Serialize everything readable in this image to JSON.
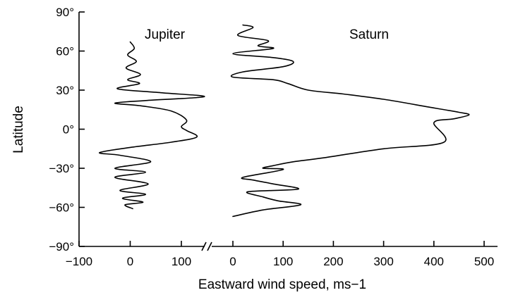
{
  "chart_data": {
    "type": "line",
    "xlabel": "Eastward wind speed, ms−1",
    "ylabel": "Latitude",
    "y_ticks": [
      "90°",
      "60°",
      "30°",
      "0°",
      "−30°",
      "−60°",
      "−90°"
    ],
    "ylim": [
      -90,
      90
    ],
    "panels": [
      {
        "name": "Jupiter",
        "x_ticks": [
          "−100",
          "0",
          "100"
        ],
        "xlim": [
          -100,
          145
        ],
        "series": [
          {
            "name": "Jupiter",
            "points": [
              [
                0,
                67
              ],
              [
                8,
                62
              ],
              [
                -5,
                57
              ],
              [
                12,
                52
              ],
              [
                -8,
                47
              ],
              [
                20,
                42
              ],
              [
                -5,
                38
              ],
              [
                18,
                35
              ],
              [
                -25,
                31
              ],
              [
                60,
                28
              ],
              [
                145,
                25
              ],
              [
                30,
                22
              ],
              [
                -30,
                20
              ],
              [
                20,
                18
              ],
              [
                80,
                14
              ],
              [
                110,
                7
              ],
              [
                100,
                2
              ],
              [
                110,
                -1
              ],
              [
                130,
                -6
              ],
              [
                80,
                -10
              ],
              [
                0,
                -14
              ],
              [
                -60,
                -18
              ],
              [
                -20,
                -20
              ],
              [
                40,
                -25
              ],
              [
                -30,
                -30
              ],
              [
                30,
                -33
              ],
              [
                -30,
                -37
              ],
              [
                35,
                -42
              ],
              [
                -20,
                -47
              ],
              [
                30,
                -50
              ],
              [
                -15,
                -53
              ],
              [
                25,
                -56
              ],
              [
                -10,
                -58
              ],
              [
                5,
                -61
              ]
            ]
          }
        ]
      },
      {
        "name": "Saturn",
        "x_ticks": [
          "0",
          "100",
          "200",
          "300",
          "400",
          "500"
        ],
        "xlim": [
          -30,
          500
        ],
        "series": [
          {
            "name": "Saturn",
            "points": [
              [
                20,
                80
              ],
              [
                40,
                78
              ],
              [
                10,
                72
              ],
              [
                70,
                68
              ],
              [
                50,
                64
              ],
              [
                80,
                62
              ],
              [
                0,
                58
              ],
              [
                80,
                55
              ],
              [
                120,
                52
              ],
              [
                100,
                48
              ],
              [
                20,
                44
              ],
              [
                0,
                40
              ],
              [
                80,
                38
              ],
              [
                110,
                35
              ],
              [
                150,
                30
              ],
              [
                220,
                27
              ],
              [
                300,
                23
              ],
              [
                390,
                17
              ],
              [
                450,
                13
              ],
              [
                470,
                11
              ],
              [
                440,
                8
              ],
              [
                400,
                5
              ],
              [
                420,
                -10
              ],
              [
                300,
                -15
              ],
              [
                180,
                -22
              ],
              [
                120,
                -25
              ],
              [
                80,
                -28
              ],
              [
                60,
                -30
              ],
              [
                100,
                -31
              ],
              [
                20,
                -37
              ],
              [
                40,
                -39
              ],
              [
                80,
                -42
              ],
              [
                130,
                -46
              ],
              [
                30,
                -48
              ],
              [
                60,
                -52
              ],
              [
                90,
                -55
              ],
              [
                135,
                -58
              ],
              [
                60,
                -62
              ],
              [
                0,
                -67
              ]
            ]
          }
        ]
      }
    ]
  }
}
